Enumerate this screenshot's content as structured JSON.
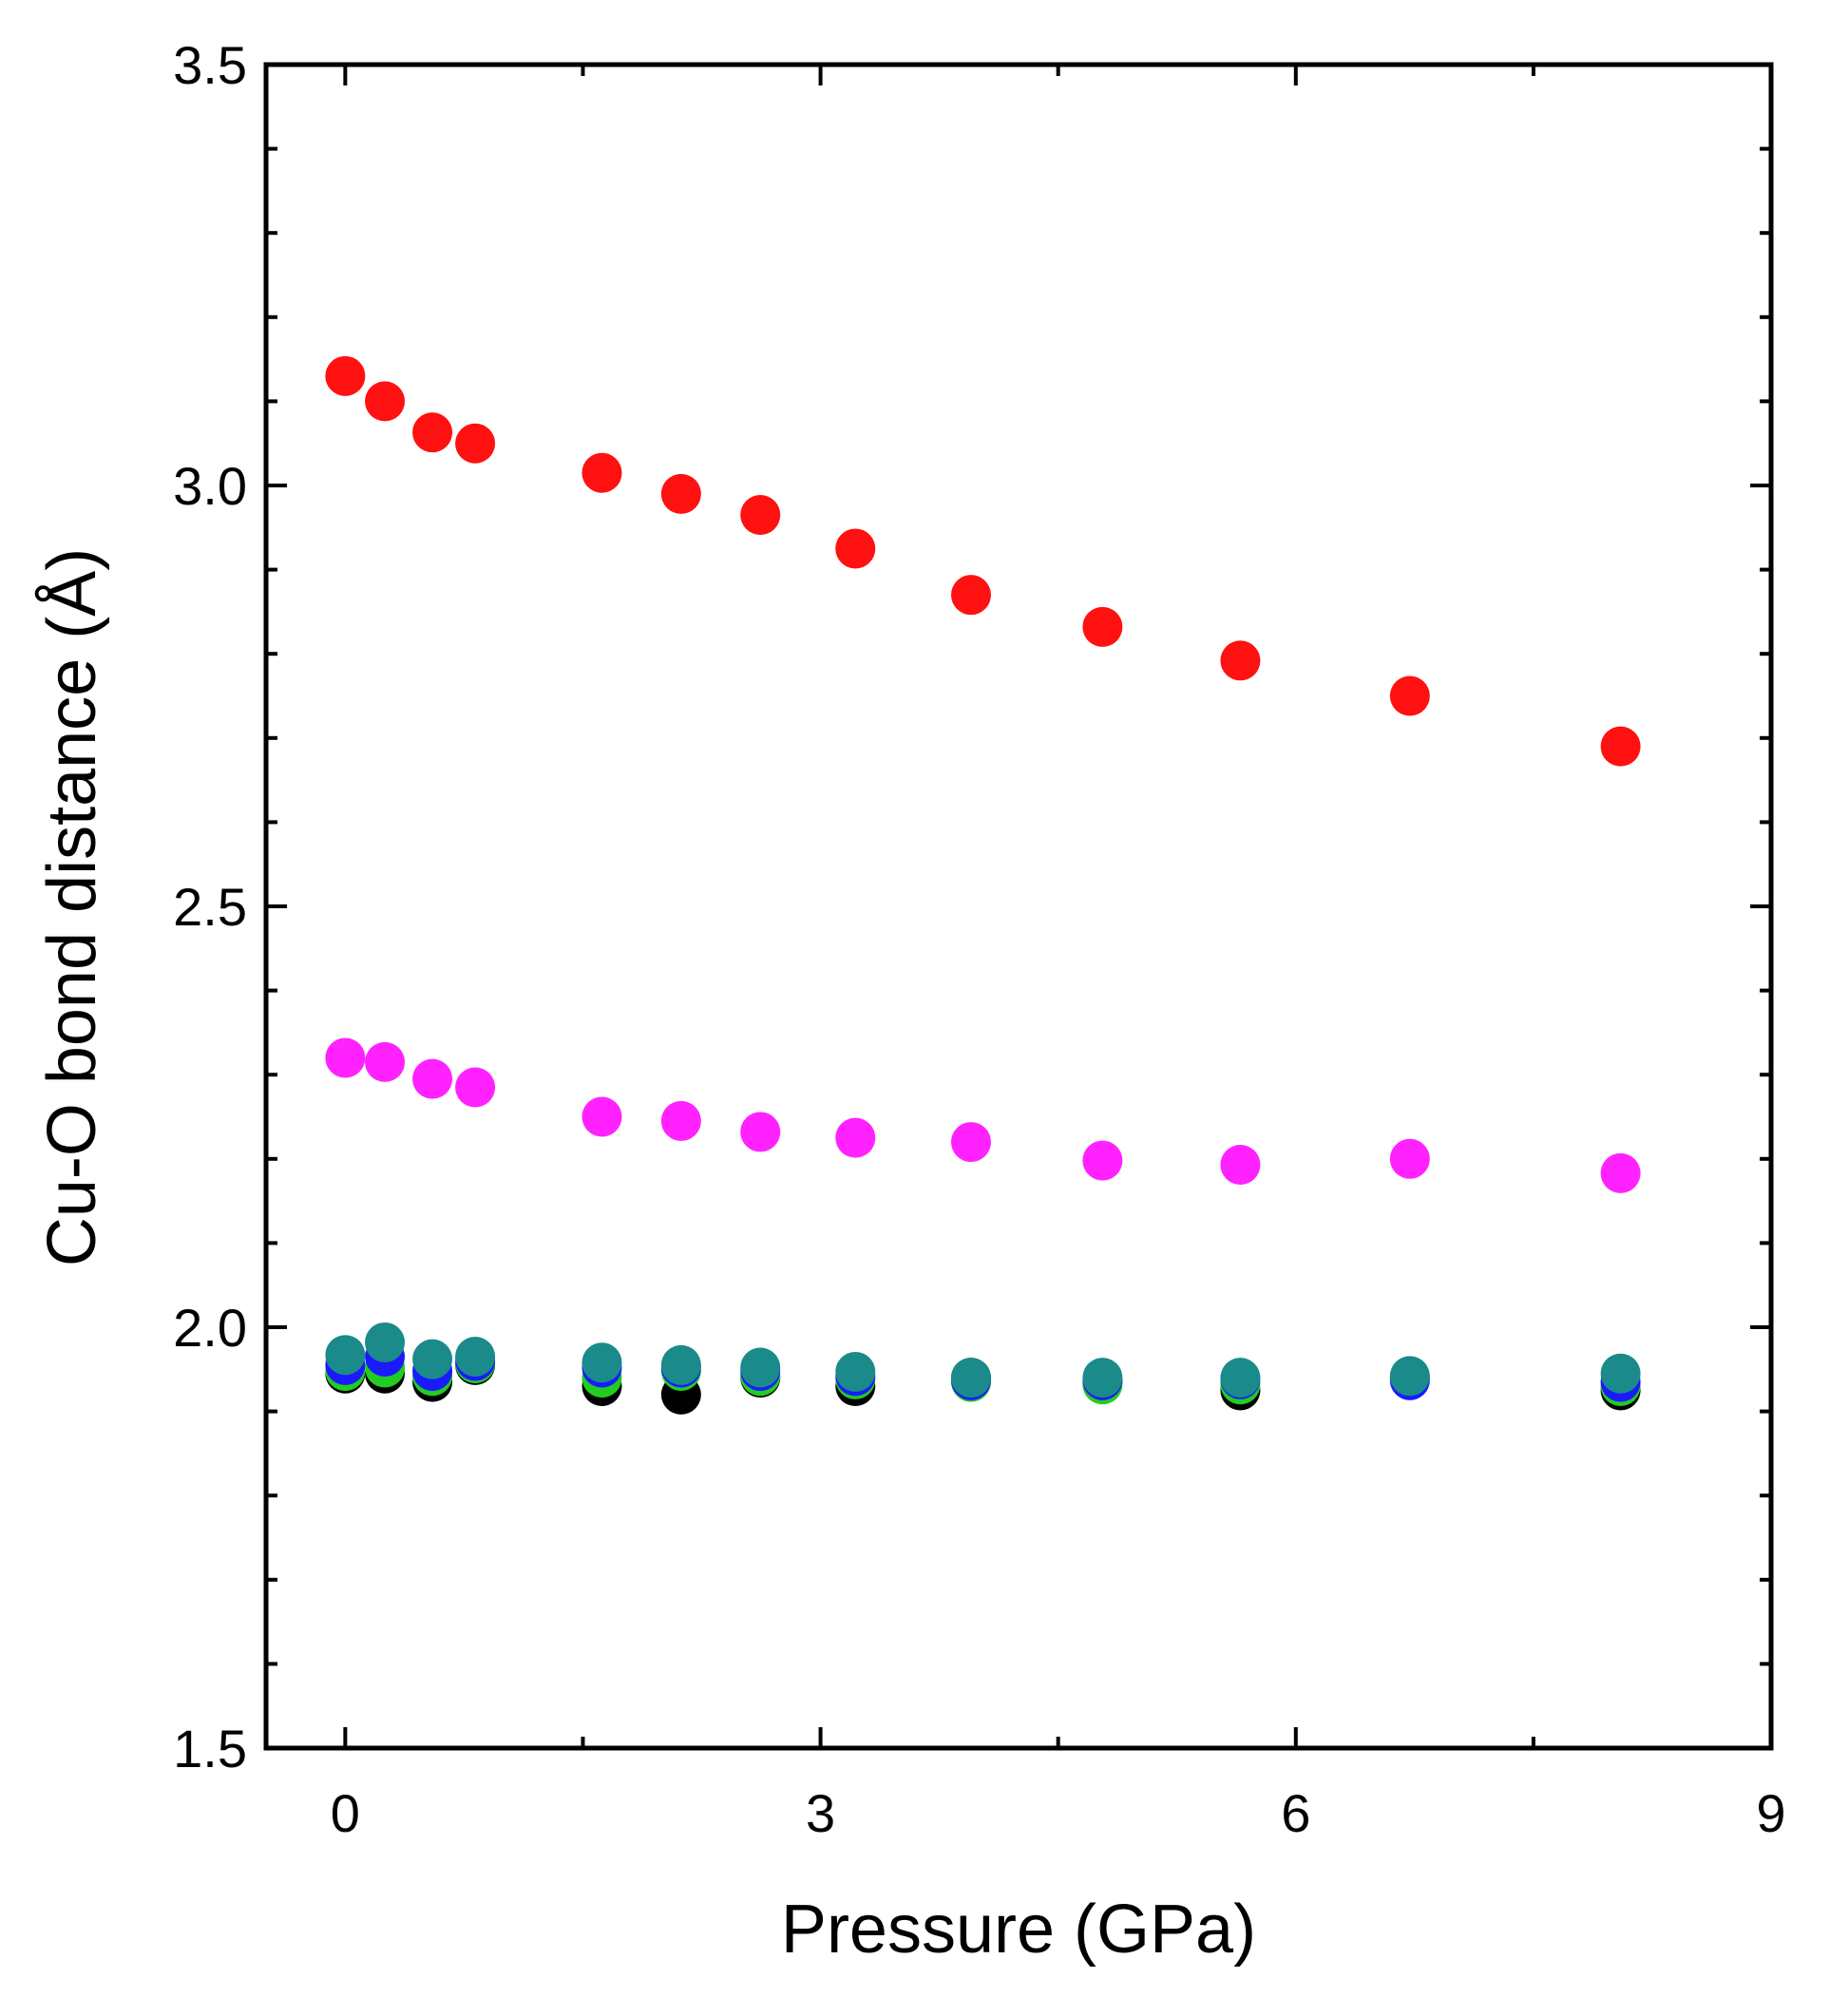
{
  "chart_data": {
    "type": "scatter",
    "title": "",
    "xlabel": "Pressure (GPa)",
    "ylabel": "Cu-O bond distance (Å)",
    "xlim": [
      -0.5,
      9
    ],
    "ylim": [
      1.5,
      3.5
    ],
    "x_ticks": [
      0,
      3,
      6,
      9
    ],
    "x_tick_labels": [
      "0",
      "3",
      "6",
      "9"
    ],
    "y_ticks": [
      1.5,
      2.0,
      2.5,
      3.0,
      3.5
    ],
    "y_tick_labels": [
      "1.5",
      "2.0",
      "2.5",
      "3.0",
      "3.5"
    ],
    "grid": false,
    "legend": "none",
    "x": [
      0.0,
      0.25,
      0.55,
      0.82,
      1.62,
      2.12,
      2.62,
      3.22,
      3.95,
      4.78,
      5.65,
      6.72,
      8.05
    ],
    "series": [
      {
        "name": "black",
        "color": "#000000",
        "values": [
          1.945,
          1.945,
          1.935,
          1.955,
          1.93,
          1.92,
          1.94,
          1.93,
          1.94,
          1.935,
          1.925,
          1.94,
          1.925
        ]
      },
      {
        "name": "green",
        "color": "#22cc22",
        "values": [
          1.948,
          1.952,
          1.942,
          1.957,
          1.94,
          1.948,
          1.942,
          1.938,
          1.935,
          1.932,
          1.932,
          1.94,
          1.93
        ]
      },
      {
        "name": "blue",
        "color": "#1a1aff",
        "values": [
          1.955,
          1.965,
          1.948,
          1.96,
          1.952,
          1.952,
          1.948,
          1.942,
          1.937,
          1.937,
          1.938,
          1.937,
          1.935
        ]
      },
      {
        "name": "teal",
        "color": "#1a8a8a",
        "values": [
          1.967,
          1.982,
          1.962,
          1.965,
          1.958,
          1.955,
          1.952,
          1.947,
          1.94,
          1.94,
          1.94,
          1.942,
          1.945
        ]
      },
      {
        "name": "magenta",
        "color": "#ff22ff",
        "values": [
          2.32,
          2.315,
          2.295,
          2.285,
          2.25,
          2.245,
          2.232,
          2.225,
          2.22,
          2.198,
          2.193,
          2.2,
          2.183
        ]
      },
      {
        "name": "red",
        "color": "#ff1111",
        "values": [
          3.13,
          3.1,
          3.063,
          3.05,
          3.015,
          2.99,
          2.965,
          2.925,
          2.87,
          2.832,
          2.792,
          2.75,
          2.69
        ]
      }
    ]
  }
}
